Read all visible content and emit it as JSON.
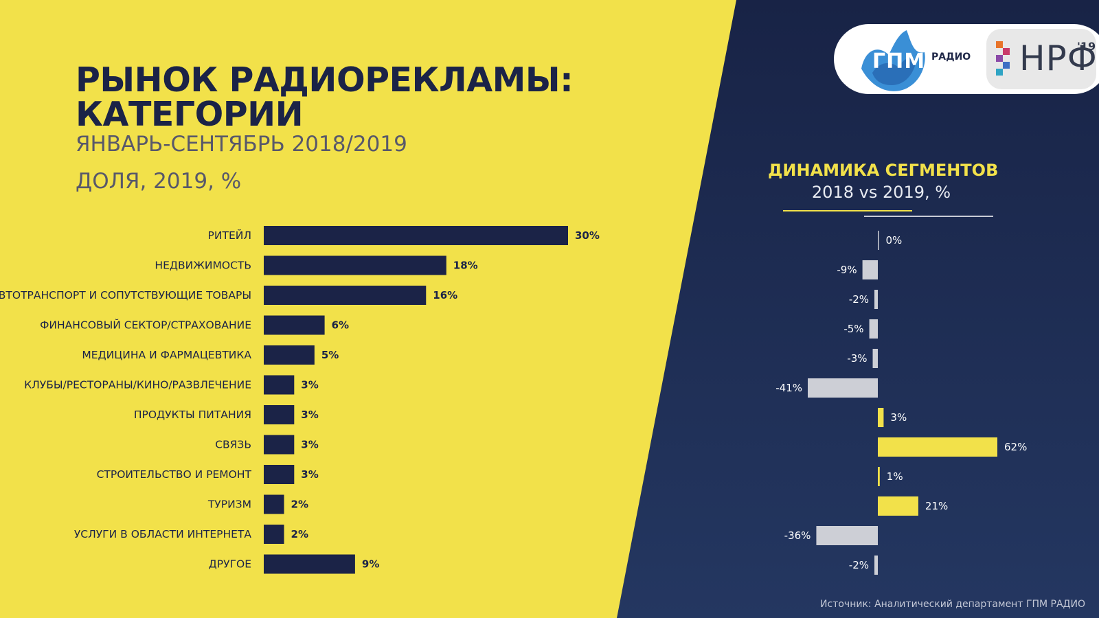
{
  "slide": {
    "title_line1": "РЫНОК РАДИОРЕКЛАМЫ:",
    "title_line2": "КАТЕГОРИИ",
    "subtitle": "ЯНВАРЬ-СЕНТЯБРЬ 2018/2019",
    "share_label": "ДОЛЯ, 2019, %",
    "right_title": "ДИНАМИКА СЕГМЕНТОВ",
    "right_subtitle": "2018 vs 2019, %",
    "source": "Источник: Аналитический департамент ГПМ РАДИО"
  },
  "logos": {
    "gpm_text": "ГПМ",
    "radio_text": "РАДИО",
    "nrf_text": "НРФ",
    "nrf_year": "'19"
  },
  "colors": {
    "yellow": "#f2e14a",
    "navy": "#1b2347",
    "gray_bar": "#cdcfd6",
    "label_dark": "#1b2347",
    "label_light": "#ffffff"
  },
  "chart_data": [
    {
      "type": "bar",
      "orientation": "horizontal",
      "title": "ДОЛЯ, 2019, %",
      "categories": [
        "РИТЕЙЛ",
        "НЕДВИЖИМОСТЬ",
        "АВТОТРАНСПОРТ И СОПУТСТВУЮЩИЕ ТОВАРЫ",
        "ФИНАНСОВЫЙ СЕКТОР/СТРАХОВАНИЕ",
        "МЕДИЦИНА И ФАРМАЦЕВТИКА",
        "КЛУБЫ/РЕСТОРАНЫ/КИНО/РАЗВЛЕЧЕНИЕ",
        "ПРОДУКТЫ ПИТАНИЯ",
        "СВЯЗЬ",
        "СТРОИТЕЛЬСТВО И РЕМОНТ",
        "ТУРИЗМ",
        "УСЛУГИ В ОБЛАСТИ ИНТЕРНЕТА",
        "ДРУГОЕ"
      ],
      "values": [
        30,
        18,
        16,
        6,
        5,
        3,
        3,
        3,
        3,
        2,
        2,
        9
      ],
      "labels": [
        "30%",
        "18%",
        "16%",
        "6%",
        "5%",
        "3%",
        "3%",
        "3%",
        "3%",
        "2%",
        "2%",
        "9%"
      ],
      "bar_color": "#1b2347",
      "xlim": [
        0,
        30
      ]
    },
    {
      "type": "bar",
      "orientation": "horizontal",
      "title": "ДИНАМИКА СЕГМЕНТОВ",
      "subtitle": "2018 vs 2019, %",
      "categories": [
        "РИТЕЙЛ",
        "НЕДВИЖИМОСТЬ",
        "АВТОТРАНСПОРТ И СОПУТСТВУЮЩИЕ ТОВАРЫ",
        "ФИНАНСОВЫЙ СЕКТОР/СТРАХОВАНИЕ",
        "МЕДИЦИНА И ФАРМАЦЕВТИКА",
        "КЛУБЫ/РЕСТОРАНЫ/КИНО/РАЗВЛЕЧЕНИЕ",
        "ПРОДУКТЫ ПИТАНИЯ",
        "СВЯЗЬ",
        "СТРОИТЕЛЬСТВО И РЕМОНТ",
        "ТУРИЗМ",
        "УСЛУГИ В ОБЛАСТИ ИНТЕРНЕТА",
        "ДРУГОЕ"
      ],
      "values": [
        0,
        -9,
        -2,
        -5,
        -3,
        -41,
        3,
        62,
        1,
        21,
        -36,
        -2
      ],
      "labels": [
        "0%",
        "-9%",
        "-2%",
        "-5%",
        "-3%",
        "-41%",
        "3%",
        "62%",
        "1%",
        "21%",
        "-36%",
        "-2%"
      ],
      "positive_color": "#f2e14a",
      "negative_color": "#cdcfd6",
      "xlim": [
        -41,
        62
      ]
    }
  ]
}
